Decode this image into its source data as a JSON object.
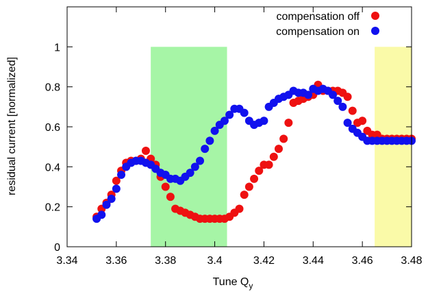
{
  "chart_data": {
    "type": "scatter",
    "xlabel": "Tune Q",
    "xlabel_sub": "y",
    "ylabel": "residual current [normalized]",
    "xlim": [
      3.34,
      3.48
    ],
    "ylim": [
      0,
      1.2
    ],
    "xticks": [
      "3.34",
      "3.36",
      "3.38",
      "3.4",
      "3.42",
      "3.44",
      "3.46",
      "3.48"
    ],
    "yticks": [
      "0",
      "0.2",
      "0.4",
      "0.6",
      "0.8",
      "1"
    ],
    "legend_position": "top-right",
    "regions": [
      {
        "x0": 3.374,
        "x1": 3.405,
        "y0": 0,
        "y1": 1.0,
        "color": "#a6f5a6"
      },
      {
        "x0": 3.465,
        "x1": 3.48,
        "y0": 0,
        "y1": 1.0,
        "color": "#fafaa8"
      }
    ],
    "series": [
      {
        "name": "compensation off",
        "color": "#ee1111",
        "x": [
          3.352,
          3.354,
          3.356,
          3.358,
          3.36,
          3.362,
          3.364,
          3.366,
          3.368,
          3.37,
          3.372,
          3.374,
          3.376,
          3.378,
          3.38,
          3.382,
          3.384,
          3.386,
          3.388,
          3.39,
          3.392,
          3.394,
          3.396,
          3.398,
          3.4,
          3.402,
          3.404,
          3.406,
          3.408,
          3.41,
          3.412,
          3.414,
          3.416,
          3.418,
          3.42,
          3.422,
          3.424,
          3.426,
          3.428,
          3.43,
          3.432,
          3.434,
          3.436,
          3.438,
          3.44,
          3.442,
          3.444,
          3.446,
          3.448,
          3.45,
          3.452,
          3.454,
          3.456,
          3.458,
          3.46,
          3.462,
          3.464,
          3.466,
          3.468,
          3.47,
          3.472,
          3.474,
          3.476,
          3.478,
          3.48
        ],
        "y": [
          0.15,
          0.19,
          0.22,
          0.26,
          0.33,
          0.38,
          0.42,
          0.43,
          0.43,
          0.44,
          0.48,
          0.44,
          0.41,
          0.35,
          0.3,
          0.25,
          0.19,
          0.18,
          0.17,
          0.16,
          0.15,
          0.14,
          0.14,
          0.14,
          0.14,
          0.14,
          0.14,
          0.15,
          0.17,
          0.19,
          0.26,
          0.3,
          0.34,
          0.38,
          0.41,
          0.41,
          0.45,
          0.49,
          0.54,
          0.62,
          0.72,
          0.73,
          0.74,
          0.75,
          0.76,
          0.81,
          0.78,
          0.78,
          0.78,
          0.78,
          0.77,
          0.75,
          0.68,
          0.62,
          0.63,
          0.58,
          0.56,
          0.56,
          0.54,
          0.54,
          0.54,
          0.54,
          0.54,
          0.54,
          0.54
        ]
      },
      {
        "name": "compensation on",
        "color": "#1111ee",
        "x": [
          3.352,
          3.354,
          3.356,
          3.358,
          3.36,
          3.362,
          3.364,
          3.366,
          3.368,
          3.37,
          3.372,
          3.374,
          3.376,
          3.378,
          3.38,
          3.382,
          3.384,
          3.386,
          3.388,
          3.39,
          3.392,
          3.394,
          3.396,
          3.398,
          3.4,
          3.402,
          3.404,
          3.406,
          3.408,
          3.41,
          3.412,
          3.414,
          3.416,
          3.418,
          3.42,
          3.422,
          3.424,
          3.426,
          3.428,
          3.43,
          3.432,
          3.434,
          3.436,
          3.438,
          3.44,
          3.442,
          3.444,
          3.446,
          3.448,
          3.45,
          3.452,
          3.454,
          3.456,
          3.458,
          3.46,
          3.462,
          3.464,
          3.466,
          3.468,
          3.47,
          3.472,
          3.474,
          3.476,
          3.478,
          3.48
        ],
        "y": [
          0.14,
          0.16,
          0.21,
          0.24,
          0.29,
          0.36,
          0.4,
          0.42,
          0.43,
          0.43,
          0.42,
          0.41,
          0.39,
          0.37,
          0.36,
          0.34,
          0.34,
          0.33,
          0.35,
          0.37,
          0.4,
          0.43,
          0.49,
          0.53,
          0.58,
          0.61,
          0.63,
          0.66,
          0.69,
          0.69,
          0.67,
          0.63,
          0.61,
          0.62,
          0.63,
          0.7,
          0.72,
          0.74,
          0.75,
          0.76,
          0.78,
          0.77,
          0.77,
          0.76,
          0.79,
          0.78,
          0.79,
          0.78,
          0.76,
          0.73,
          0.7,
          0.62,
          0.59,
          0.57,
          0.55,
          0.53,
          0.53,
          0.53,
          0.53,
          0.53,
          0.53,
          0.53,
          0.53,
          0.53,
          0.53
        ]
      }
    ]
  }
}
